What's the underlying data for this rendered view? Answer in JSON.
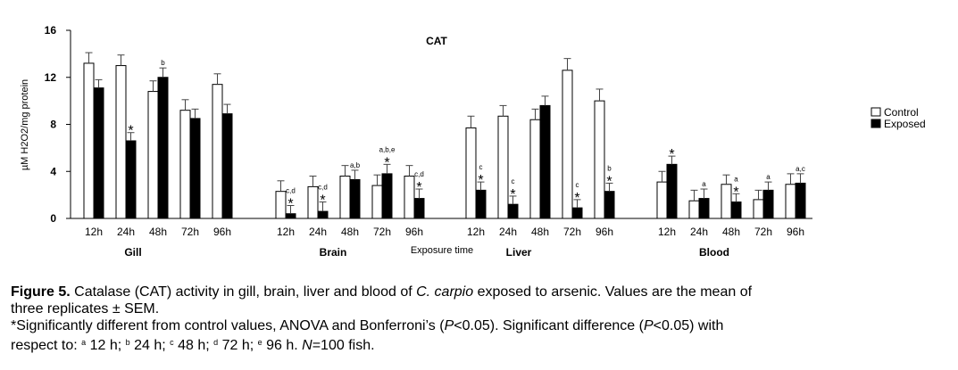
{
  "chart_data": {
    "type": "bar",
    "title": "CAT",
    "ylabel": "µM H2O2/mg protein",
    "xlabel": "Exposure time",
    "ylim": [
      0,
      16
    ],
    "yticks": [
      0,
      4,
      8,
      12,
      16
    ],
    "timepoints": [
      "12h",
      "24h",
      "48h",
      "72h",
      "96h"
    ],
    "legend": {
      "position": "right",
      "control": "Control",
      "exposed": "Exposed"
    },
    "groups": [
      {
        "name": "Gill",
        "control": [
          13.2,
          13.0,
          10.8,
          9.2,
          11.4
        ],
        "control_err": [
          0.9,
          0.9,
          0.9,
          0.9,
          0.9
        ],
        "exposed": [
          11.1,
          6.6,
          12.0,
          8.5,
          8.9
        ],
        "exposed_err": [
          0.7,
          0.7,
          0.8,
          0.8,
          0.8
        ],
        "labels": [
          "",
          "*",
          "b",
          "",
          ""
        ]
      },
      {
        "name": "Brain",
        "control": [
          2.3,
          2.7,
          3.6,
          2.8,
          3.6
        ],
        "control_err": [
          0.9,
          0.9,
          0.9,
          0.9,
          0.9
        ],
        "exposed": [
          0.4,
          0.6,
          3.3,
          3.8,
          1.7
        ],
        "exposed_err": [
          0.7,
          0.8,
          0.8,
          0.8,
          0.8
        ],
        "labels": [
          "c,d\n*",
          "c,d\n*",
          "a,b",
          "a,b,e\n*",
          "c,d\n*"
        ]
      },
      {
        "name": "Liver",
        "control": [
          7.7,
          8.7,
          8.4,
          12.6,
          10.0
        ],
        "control_err": [
          1.0,
          0.9,
          0.9,
          1.0,
          1.0
        ],
        "exposed": [
          2.4,
          1.2,
          9.6,
          0.9,
          2.3
        ],
        "exposed_err": [
          0.7,
          0.7,
          0.8,
          0.7,
          0.7
        ],
        "labels": [
          "c\n*",
          "c\n*",
          "",
          "c\n*",
          "b\n*"
        ]
      },
      {
        "name": "Blood",
        "control": [
          3.1,
          1.5,
          2.9,
          1.6,
          2.9
        ],
        "control_err": [
          0.9,
          0.9,
          0.8,
          0.8,
          0.9
        ],
        "exposed": [
          4.6,
          1.7,
          1.4,
          2.4,
          3.0
        ],
        "exposed_err": [
          0.7,
          0.8,
          0.7,
          0.7,
          0.8
        ],
        "labels": [
          "*",
          "a",
          "a\n*",
          "a",
          "a,c"
        ]
      }
    ]
  },
  "caption": {
    "line1_bold": "Figure 5.",
    "line1_a": " Catalase (CAT) activity in gill, brain, liver and blood of ",
    "line1_species": "C. carpio",
    "line1_b": " exposed to arsenic. Values are the mean of",
    "line2": "three replicates ± SEM.",
    "line3_a": "*Significantly different from control values, ANOVA and Bonferroni’s (",
    "p1": "P",
    "line3_b": "<0.05). Significant difference (",
    "p2": "P",
    "line3_c": "<0.05) with",
    "line4_a": "respect to: ",
    "sup_a": "a",
    "t_a": " 12 h; ",
    "sup_b": "b",
    "t_b": " 24 h; ",
    "sup_c": "c",
    "t_c": " 48 h; ",
    "sup_d": "d",
    "t_d": " 72 h; ",
    "sup_e": "e",
    "t_e": " 96 h. ",
    "n_italic": "N",
    "n_rest": "=100 fish."
  }
}
